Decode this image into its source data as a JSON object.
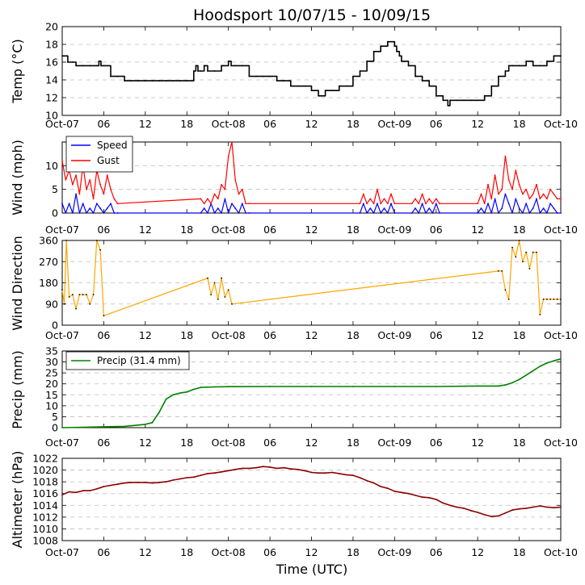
{
  "title": "Hoodsport 10/07/15 - 10/09/15",
  "xlabel": "Time (UTC)",
  "time_ticks": [
    "Oct-07",
    "06",
    "12",
    "18",
    "Oct-08",
    "06",
    "12",
    "18",
    "Oct-09",
    "06",
    "12",
    "18",
    "Oct-10"
  ],
  "colors": {
    "temp": "#000000",
    "speed": "#0000ff",
    "gust": "#ff0000",
    "dir_line": "#ffa500",
    "precip": "#008000",
    "alt": "#8b0000"
  },
  "chart_data": [
    {
      "id": "temp",
      "type": "line",
      "ylabel": "Temp (°C)",
      "ylim": [
        10,
        20
      ],
      "yticks": [
        "10",
        "12",
        "14",
        "16",
        "18",
        "20"
      ],
      "grid": true,
      "x_unit": "hours since 2015-10-07 00:00 UTC",
      "xlim": [
        0,
        72
      ],
      "series": [
        {
          "name": "Temp",
          "x": [
            0,
            0.7,
            0.8,
            1.5,
            2,
            3,
            4,
            5,
            5.3,
            5.6,
            6,
            7,
            8,
            9,
            10,
            11,
            12,
            13,
            14,
            15,
            16,
            17,
            18,
            19,
            19.3,
            19.6,
            20,
            20.5,
            21,
            22,
            23,
            23.3,
            24,
            24.4,
            25,
            26,
            27,
            28,
            29,
            30,
            31,
            32,
            33,
            34,
            35,
            36,
            37,
            38,
            39,
            40,
            41,
            42,
            43,
            44,
            45,
            46,
            47,
            48,
            48.3,
            48.7,
            49,
            50,
            51,
            52,
            53,
            54,
            55,
            55.7,
            56,
            57,
            58,
            59,
            60,
            61,
            62,
            63,
            64,
            64.5,
            65,
            66,
            67,
            68,
            69,
            70,
            71,
            72
          ],
          "values": [
            16.7,
            16.7,
            16,
            16,
            15.6,
            15.6,
            15.6,
            15.6,
            16.1,
            15.6,
            15.6,
            14.4,
            14.4,
            13.9,
            13.9,
            13.9,
            13.9,
            13.9,
            13.9,
            13.9,
            13.9,
            13.9,
            13.9,
            15,
            15.6,
            15,
            15,
            15.6,
            15,
            15,
            15.6,
            15.6,
            16.1,
            15.6,
            15.6,
            15.6,
            14.4,
            14.4,
            14.4,
            14.4,
            13.9,
            13.9,
            13.3,
            13.3,
            13.3,
            12.8,
            12.2,
            12.8,
            12.8,
            13.3,
            13.3,
            14.4,
            15,
            16.1,
            17.2,
            17.8,
            18.3,
            17.8,
            17.2,
            16.7,
            16.1,
            15.6,
            14.4,
            13.9,
            13.3,
            12.2,
            11.7,
            11.1,
            11.7,
            11.7,
            11.7,
            11.7,
            11.7,
            12.2,
            13.3,
            14.4,
            15,
            15.6,
            15.6,
            15.6,
            16.1,
            15.6,
            15.6,
            16.1,
            16.7,
            16.7
          ]
        }
      ]
    },
    {
      "id": "wind",
      "type": "line",
      "ylabel": "Wind (mph)",
      "ylim": [
        0,
        15
      ],
      "yticks": [
        "0",
        "5",
        "10"
      ],
      "grid": true,
      "legend": "top-left",
      "series": [
        {
          "name": "Speed",
          "x": [
            0,
            0.5,
            1,
            1.5,
            2,
            2.5,
            3,
            3.5,
            4,
            4.5,
            5,
            5.5,
            6,
            6.5,
            7,
            7.5,
            8,
            20,
            20.5,
            21,
            21.5,
            22,
            22.5,
            23,
            23.5,
            24,
            24.5,
            25,
            25.5,
            26,
            26.5,
            27,
            43,
            43.5,
            44,
            44.5,
            45,
            45.5,
            46,
            46.5,
            47,
            47.5,
            48,
            50.5,
            51,
            51.5,
            52,
            52.5,
            53,
            53.5,
            54,
            54.5,
            60,
            60.5,
            61,
            61.5,
            62,
            62.5,
            63,
            63.5,
            64,
            64.5,
            65,
            65.5,
            66,
            66.5,
            67,
            67.5,
            68,
            68.5,
            69,
            69.5,
            70,
            70.5,
            71,
            71.5,
            72
          ],
          "values": [
            2,
            0,
            2,
            0,
            4,
            0,
            2,
            0,
            1,
            0,
            2,
            1,
            0,
            1,
            2,
            0,
            0,
            0,
            1,
            0,
            2,
            0,
            1,
            0,
            3,
            0,
            2,
            1,
            0,
            2,
            0,
            0,
            0,
            2,
            0,
            1,
            0,
            2,
            0,
            1,
            0,
            2,
            0,
            0,
            1,
            0,
            2,
            0,
            1,
            0,
            2,
            0,
            0,
            1,
            0,
            2,
            0,
            3,
            0,
            1,
            4,
            2,
            0,
            3,
            1,
            0,
            2,
            0,
            1,
            3,
            0,
            1,
            0,
            2,
            1,
            0,
            0
          ]
        },
        {
          "name": "Gust",
          "x": [
            0,
            0.5,
            1,
            1.5,
            2,
            2.5,
            3,
            3.5,
            4,
            4.5,
            5,
            5.5,
            6,
            6.5,
            7,
            7.5,
            8,
            20,
            20.5,
            21,
            21.5,
            22,
            22.5,
            23,
            23.5,
            24,
            24.5,
            25,
            25.5,
            26,
            26.5,
            27,
            43,
            43.5,
            44,
            44.5,
            45,
            45.5,
            46,
            46.5,
            47,
            47.5,
            48,
            50.5,
            51,
            51.5,
            52,
            52.5,
            53,
            53.5,
            54,
            54.5,
            60,
            60.5,
            61,
            61.5,
            62,
            62.5,
            63,
            63.5,
            64,
            64.5,
            65,
            65.5,
            66,
            66.5,
            67,
            67.5,
            68,
            68.5,
            69,
            69.5,
            70,
            70.5,
            71,
            71.5,
            72
          ],
          "values": [
            11,
            7,
            9,
            6,
            8,
            4,
            10,
            5,
            7,
            3,
            9,
            6,
            4,
            8,
            5,
            3,
            2,
            3,
            2,
            3,
            2,
            4,
            3,
            6,
            5,
            12,
            15,
            7,
            4,
            5,
            2,
            2,
            2,
            4,
            2,
            3,
            2,
            5,
            2,
            3,
            2,
            4,
            2,
            2,
            3,
            2,
            4,
            2,
            3,
            2,
            3,
            2,
            2,
            4,
            2,
            6,
            3,
            8,
            4,
            5,
            12,
            7,
            5,
            9,
            6,
            4,
            5,
            3,
            4,
            6,
            3,
            4,
            3,
            5,
            4,
            3,
            3
          ]
        }
      ]
    },
    {
      "id": "wind_direction",
      "type": "line",
      "ylabel": "Wind Direction",
      "ylim": [
        0,
        360
      ],
      "yticks": [
        "0",
        "90",
        "180",
        "270",
        "360"
      ],
      "grid": true,
      "series": [
        {
          "name": "Direction",
          "x": [
            0,
            0.3,
            0.6,
            1,
            1.5,
            2,
            2.5,
            3,
            3.5,
            4,
            4.5,
            5,
            5.5,
            6,
            21,
            21.5,
            22,
            22.5,
            23,
            23.5,
            24,
            24.5,
            63,
            63.5,
            64,
            64.5,
            65,
            65.5,
            66,
            66.5,
            67,
            67.5,
            68,
            68.5,
            69,
            69.5,
            70,
            70.5,
            71,
            71.5,
            72
          ],
          "values": [
            150,
            90,
            360,
            120,
            130,
            70,
            130,
            130,
            130,
            90,
            130,
            360,
            320,
            40,
            200,
            130,
            180,
            110,
            200,
            120,
            150,
            90,
            230,
            230,
            150,
            110,
            330,
            290,
            360,
            270,
            310,
            240,
            310,
            310,
            45,
            110,
            110,
            110,
            110,
            110,
            110
          ]
        }
      ]
    },
    {
      "id": "precip",
      "type": "line",
      "ylabel": "Precip (mm)",
      "ylim": [
        0,
        35
      ],
      "yticks": [
        "0",
        "5",
        "10",
        "15",
        "20",
        "25",
        "30",
        "35"
      ],
      "grid": true,
      "legend": "top-left",
      "series": [
        {
          "name": "Precip (31.4 mm)",
          "x": [
            0,
            3,
            6,
            9,
            12,
            13,
            14,
            15,
            16,
            17,
            18,
            19,
            20,
            22,
            24,
            30,
            36,
            42,
            48,
            54,
            60,
            63,
            64,
            65,
            66,
            67,
            68,
            69,
            70,
            71,
            72
          ],
          "values": [
            0,
            0.2,
            0.4,
            0.6,
            1.5,
            2.3,
            7,
            13,
            15,
            15.8,
            16.3,
            17.5,
            18.4,
            18.6,
            18.7,
            18.8,
            18.8,
            18.8,
            18.8,
            18.8,
            19,
            19,
            19.5,
            20.5,
            22,
            24,
            26,
            28,
            29.5,
            30.5,
            31.4
          ]
        }
      ]
    },
    {
      "id": "altimeter",
      "type": "line",
      "ylabel": "Altimeter (hPa)",
      "ylim": [
        1008,
        1022
      ],
      "yticks": [
        "1008",
        "1010",
        "1012",
        "1014",
        "1016",
        "1018",
        "1020",
        "1022"
      ],
      "grid": true,
      "series": [
        {
          "name": "Altimeter",
          "x": [
            0,
            1,
            2,
            3,
            4,
            5,
            6,
            7,
            8,
            9,
            10,
            11,
            12,
            13,
            14,
            15,
            16,
            17,
            18,
            19,
            20,
            21,
            22,
            23,
            24,
            25,
            26,
            27,
            28,
            29,
            30,
            31,
            32,
            33,
            34,
            35,
            36,
            37,
            38,
            39,
            40,
            41,
            42,
            43,
            44,
            45,
            46,
            47,
            48,
            49,
            50,
            51,
            52,
            53,
            54,
            55,
            56,
            57,
            58,
            59,
            60,
            61,
            62,
            63,
            64,
            65,
            66,
            67,
            68,
            69,
            70,
            71,
            72
          ],
          "values": [
            1015.8,
            1016.3,
            1016.2,
            1016.5,
            1016.5,
            1016.8,
            1017.2,
            1017.4,
            1017.6,
            1017.8,
            1017.9,
            1017.9,
            1017.9,
            1017.8,
            1017.9,
            1018,
            1018.3,
            1018.5,
            1018.7,
            1018.8,
            1019.1,
            1019.4,
            1019.5,
            1019.7,
            1019.9,
            1020.1,
            1020.3,
            1020.3,
            1020.4,
            1020.6,
            1020.5,
            1020.3,
            1020.4,
            1020.2,
            1020.1,
            1019.9,
            1019.6,
            1019.5,
            1019.5,
            1019.6,
            1019.4,
            1019.2,
            1019.1,
            1018.7,
            1018.2,
            1017.8,
            1017.2,
            1016.9,
            1016.4,
            1016.2,
            1016,
            1015.7,
            1015.4,
            1015.3,
            1015,
            1014.4,
            1014,
            1013.7,
            1013.5,
            1013.1,
            1012.8,
            1012.4,
            1012.1,
            1012.2,
            1012.7,
            1013.2,
            1013.4,
            1013.5,
            1013.7,
            1013.9,
            1013.7,
            1013.6,
            1013.7
          ]
        }
      ]
    }
  ]
}
